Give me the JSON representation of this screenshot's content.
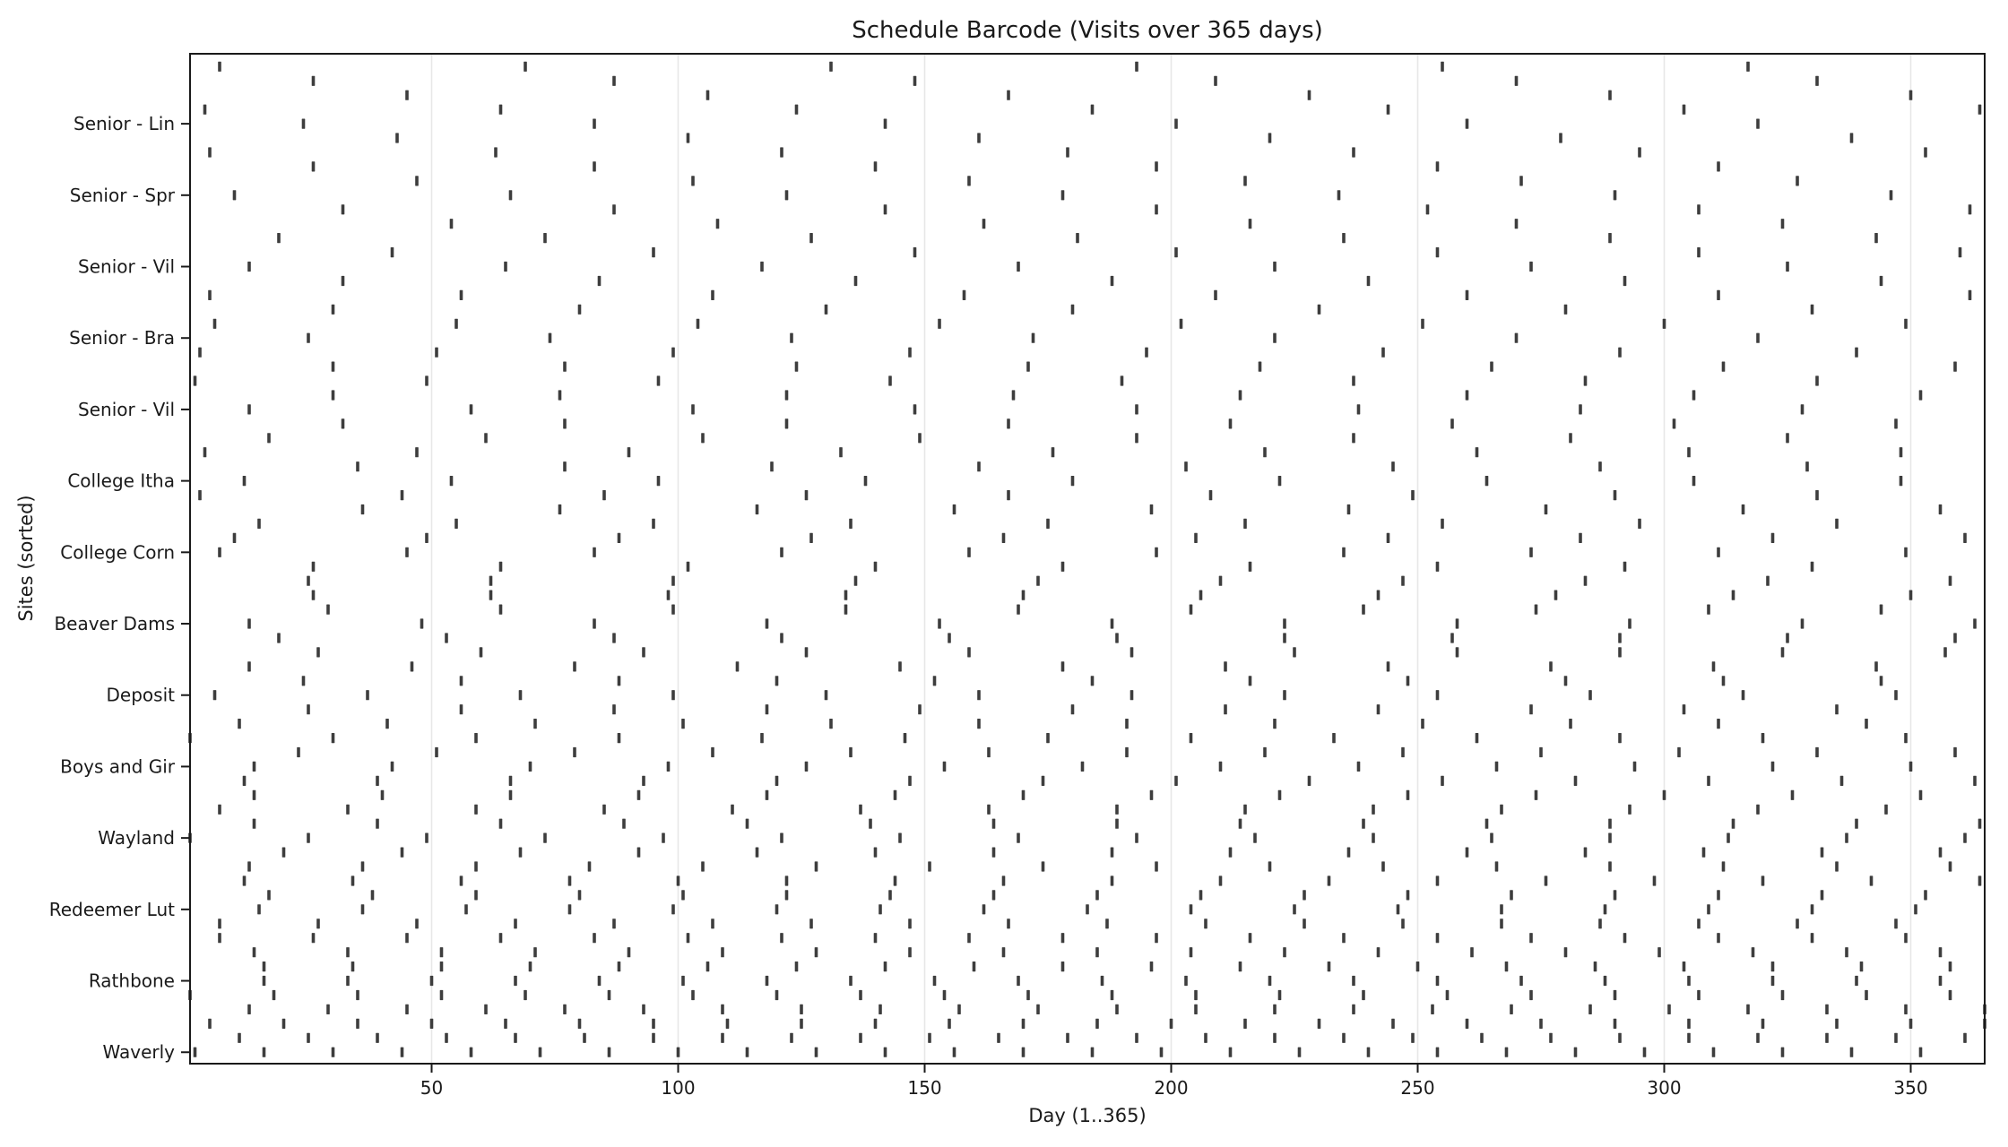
{
  "figure": {
    "title": "Schedule Barcode (Visits over 365 days)",
    "xlabel": "Day (1..365)",
    "ylabel": "Sites (sorted)"
  },
  "chart_data": {
    "type": "scatter",
    "marker": "|",
    "title": "Schedule Barcode (Visits over 365 days)",
    "xlabel": "Day (1..365)",
    "ylabel": "Sites (sorted)",
    "xlim": [
      1,
      365
    ],
    "x_ticks": [
      50,
      100,
      150,
      200,
      250,
      300,
      350
    ],
    "grid": "vertical gridlines at x ticks only",
    "legend": "none",
    "num_sites": 70,
    "mark_color": "#3d3d3d",
    "gridline_color": "#e7e7e7",
    "spine_color": "#1a1a1a",
    "y_tick_rows": [
      4,
      9,
      14,
      19,
      24,
      29,
      34,
      39,
      44,
      49,
      54,
      59,
      64,
      69
    ],
    "y_tick_labels": [
      "Senior - Lin",
      "Senior - Spr",
      "Senior - Vil",
      "Senior - Bra",
      "Senior - Vil",
      "College Itha",
      "College Corn",
      "Beaver Dams",
      "Deposit",
      "Boys and Gir",
      "Wayland",
      "Redeemer Lut",
      "Rathbone",
      "Waverly"
    ],
    "sites": [
      {
        "row": 0,
        "visit_days": [
          7,
          69,
          131,
          193,
          255,
          317
        ]
      },
      {
        "row": 1,
        "visit_days": [
          26,
          87,
          148,
          209,
          270,
          331
        ]
      },
      {
        "row": 2,
        "visit_days": [
          45,
          106,
          167,
          228,
          289,
          350
        ]
      },
      {
        "row": 3,
        "visit_days": [
          4,
          64,
          124,
          184,
          244,
          304,
          364
        ]
      },
      {
        "row": 4,
        "visit_days": [
          24,
          83,
          142,
          201,
          260,
          319
        ]
      },
      {
        "row": 5,
        "visit_days": [
          43,
          102,
          161,
          220,
          279,
          338
        ]
      },
      {
        "row": 6,
        "visit_days": [
          5,
          63,
          121,
          179,
          237,
          295,
          353
        ]
      },
      {
        "row": 7,
        "visit_days": [
          26,
          83,
          140,
          197,
          254,
          311
        ]
      },
      {
        "row": 8,
        "visit_days": [
          47,
          103,
          159,
          215,
          271,
          327
        ]
      },
      {
        "row": 9,
        "visit_days": [
          10,
          66,
          122,
          178,
          234,
          290,
          346
        ]
      },
      {
        "row": 10,
        "visit_days": [
          32,
          87,
          142,
          197,
          252,
          307,
          362
        ]
      },
      {
        "row": 11,
        "visit_days": [
          54,
          108,
          162,
          216,
          270,
          324
        ]
      },
      {
        "row": 12,
        "visit_days": [
          19,
          73,
          127,
          181,
          235,
          289,
          343
        ]
      },
      {
        "row": 13,
        "visit_days": [
          42,
          95,
          148,
          201,
          254,
          307,
          360
        ]
      },
      {
        "row": 14,
        "visit_days": [
          13,
          65,
          117,
          169,
          221,
          273,
          325
        ]
      },
      {
        "row": 15,
        "visit_days": [
          32,
          84,
          136,
          188,
          240,
          292,
          344
        ]
      },
      {
        "row": 16,
        "visit_days": [
          5,
          56,
          107,
          158,
          209,
          260,
          311,
          362
        ]
      },
      {
        "row": 17,
        "visit_days": [
          30,
          80,
          130,
          180,
          230,
          280,
          330
        ]
      },
      {
        "row": 18,
        "visit_days": [
          6,
          55,
          104,
          153,
          202,
          251,
          300,
          349
        ]
      },
      {
        "row": 19,
        "visit_days": [
          25,
          74,
          123,
          172,
          221,
          270,
          319
        ]
      },
      {
        "row": 20,
        "visit_days": [
          3,
          51,
          99,
          147,
          195,
          243,
          291,
          339
        ]
      },
      {
        "row": 21,
        "visit_days": [
          30,
          77,
          124,
          171,
          218,
          265,
          312,
          359
        ]
      },
      {
        "row": 22,
        "visit_days": [
          2,
          49,
          96,
          143,
          190,
          237,
          284,
          331
        ]
      },
      {
        "row": 23,
        "visit_days": [
          30,
          76,
          122,
          168,
          214,
          260,
          306,
          352
        ]
      },
      {
        "row": 24,
        "visit_days": [
          13,
          58,
          103,
          148,
          193,
          238,
          283,
          328
        ]
      },
      {
        "row": 25,
        "visit_days": [
          32,
          77,
          122,
          167,
          212,
          257,
          302,
          347
        ]
      },
      {
        "row": 26,
        "visit_days": [
          17,
          61,
          105,
          149,
          193,
          237,
          281,
          325
        ]
      },
      {
        "row": 27,
        "visit_days": [
          4,
          47,
          90,
          133,
          176,
          219,
          262,
          305,
          348
        ]
      },
      {
        "row": 28,
        "visit_days": [
          35,
          77,
          119,
          161,
          203,
          245,
          287,
          329
        ]
      },
      {
        "row": 29,
        "visit_days": [
          12,
          54,
          96,
          138,
          180,
          222,
          264,
          306,
          348
        ]
      },
      {
        "row": 30,
        "visit_days": [
          3,
          44,
          85,
          126,
          167,
          208,
          249,
          290,
          331
        ]
      },
      {
        "row": 31,
        "visit_days": [
          36,
          76,
          116,
          156,
          196,
          236,
          276,
          316,
          356
        ]
      },
      {
        "row": 32,
        "visit_days": [
          15,
          55,
          95,
          135,
          175,
          215,
          255,
          295,
          335
        ]
      },
      {
        "row": 33,
        "visit_days": [
          10,
          49,
          88,
          127,
          166,
          205,
          244,
          283,
          322,
          361
        ]
      },
      {
        "row": 34,
        "visit_days": [
          7,
          45,
          83,
          121,
          159,
          197,
          235,
          273,
          311,
          349
        ]
      },
      {
        "row": 35,
        "visit_days": [
          26,
          64,
          102,
          140,
          178,
          216,
          254,
          292,
          330
        ]
      },
      {
        "row": 36,
        "visit_days": [
          25,
          62,
          99,
          136,
          173,
          210,
          247,
          284,
          321,
          358
        ]
      },
      {
        "row": 37,
        "visit_days": [
          26,
          62,
          98,
          134,
          170,
          206,
          242,
          278,
          314,
          350
        ]
      },
      {
        "row": 38,
        "visit_days": [
          29,
          64,
          99,
          134,
          169,
          204,
          239,
          274,
          309,
          344
        ]
      },
      {
        "row": 39,
        "visit_days": [
          13,
          48,
          83,
          118,
          153,
          188,
          223,
          258,
          293,
          328,
          363
        ]
      },
      {
        "row": 40,
        "visit_days": [
          19,
          53,
          87,
          121,
          155,
          189,
          223,
          257,
          291,
          325,
          359
        ]
      },
      {
        "row": 41,
        "visit_days": [
          27,
          60,
          93,
          126,
          159,
          192,
          225,
          258,
          291,
          324,
          357
        ]
      },
      {
        "row": 42,
        "visit_days": [
          13,
          46,
          79,
          112,
          145,
          178,
          211,
          244,
          277,
          310,
          343
        ]
      },
      {
        "row": 43,
        "visit_days": [
          24,
          56,
          88,
          120,
          152,
          184,
          216,
          248,
          280,
          312,
          344
        ]
      },
      {
        "row": 44,
        "visit_days": [
          6,
          37,
          68,
          99,
          130,
          161,
          192,
          223,
          254,
          285,
          316,
          347
        ]
      },
      {
        "row": 45,
        "visit_days": [
          25,
          56,
          87,
          118,
          149,
          180,
          211,
          242,
          273,
          304,
          335
        ]
      },
      {
        "row": 46,
        "visit_days": [
          11,
          41,
          71,
          101,
          131,
          161,
          191,
          221,
          251,
          281,
          311,
          341
        ]
      },
      {
        "row": 47,
        "visit_days": [
          1,
          30,
          59,
          88,
          117,
          146,
          175,
          204,
          233,
          262,
          291,
          320,
          349
        ]
      },
      {
        "row": 48,
        "visit_days": [
          23,
          51,
          79,
          107,
          135,
          163,
          191,
          219,
          247,
          275,
          303,
          331,
          359
        ]
      },
      {
        "row": 49,
        "visit_days": [
          14,
          42,
          70,
          98,
          126,
          154,
          182,
          210,
          238,
          266,
          294,
          322,
          350
        ]
      },
      {
        "row": 50,
        "visit_days": [
          12,
          39,
          66,
          93,
          120,
          147,
          174,
          201,
          228,
          255,
          282,
          309,
          336,
          363
        ]
      },
      {
        "row": 51,
        "visit_days": [
          14,
          40,
          66,
          92,
          118,
          144,
          170,
          196,
          222,
          248,
          274,
          300,
          326,
          352
        ]
      },
      {
        "row": 52,
        "visit_days": [
          7,
          33,
          59,
          85,
          111,
          137,
          163,
          189,
          215,
          241,
          267,
          293,
          319,
          345
        ]
      },
      {
        "row": 53,
        "visit_days": [
          14,
          39,
          64,
          89,
          114,
          139,
          164,
          189,
          214,
          239,
          264,
          289,
          314,
          339,
          364
        ]
      },
      {
        "row": 54,
        "visit_days": [
          1,
          25,
          49,
          73,
          97,
          121,
          145,
          169,
          193,
          217,
          241,
          265,
          289,
          313,
          337,
          361
        ]
      },
      {
        "row": 55,
        "visit_days": [
          20,
          44,
          68,
          92,
          116,
          140,
          164,
          188,
          212,
          236,
          260,
          284,
          308,
          332,
          356
        ]
      },
      {
        "row": 56,
        "visit_days": [
          13,
          36,
          59,
          82,
          105,
          128,
          151,
          174,
          197,
          220,
          243,
          266,
          289,
          312,
          335,
          358
        ]
      },
      {
        "row": 57,
        "visit_days": [
          12,
          34,
          56,
          78,
          100,
          122,
          144,
          166,
          188,
          210,
          232,
          254,
          276,
          298,
          320,
          342,
          364
        ]
      },
      {
        "row": 58,
        "visit_days": [
          17,
          38,
          59,
          80,
          101,
          122,
          143,
          164,
          185,
          206,
          227,
          248,
          269,
          290,
          311,
          332,
          353
        ]
      },
      {
        "row": 59,
        "visit_days": [
          15,
          36,
          57,
          78,
          99,
          120,
          141,
          162,
          183,
          204,
          225,
          246,
          267,
          288,
          309,
          330,
          351
        ]
      },
      {
        "row": 60,
        "visit_days": [
          7,
          27,
          47,
          67,
          87,
          107,
          127,
          147,
          167,
          187,
          207,
          227,
          247,
          267,
          287,
          307,
          327,
          347
        ]
      },
      {
        "row": 61,
        "visit_days": [
          7,
          26,
          45,
          64,
          83,
          102,
          121,
          140,
          159,
          178,
          197,
          216,
          235,
          254,
          273,
          292,
          311,
          330,
          349
        ]
      },
      {
        "row": 62,
        "visit_days": [
          14,
          33,
          52,
          71,
          90,
          109,
          128,
          147,
          166,
          185,
          204,
          223,
          242,
          261,
          280,
          299,
          318,
          337,
          356
        ]
      },
      {
        "row": 63,
        "visit_days": [
          16,
          34,
          52,
          70,
          88,
          106,
          124,
          142,
          160,
          178,
          196,
          214,
          232,
          250,
          268,
          286,
          304,
          322,
          340,
          358
        ]
      },
      {
        "row": 64,
        "visit_days": [
          16,
          33,
          50,
          67,
          84,
          101,
          118,
          135,
          152,
          169,
          186,
          203,
          220,
          237,
          254,
          271,
          288,
          305,
          322,
          339,
          356
        ]
      },
      {
        "row": 65,
        "visit_days": [
          1,
          18,
          35,
          52,
          69,
          86,
          103,
          120,
          137,
          154,
          171,
          188,
          205,
          222,
          239,
          256,
          273,
          290,
          307,
          324,
          341,
          358
        ]
      },
      {
        "row": 66,
        "visit_days": [
          13,
          29,
          45,
          61,
          77,
          93,
          109,
          125,
          141,
          157,
          173,
          189,
          205,
          221,
          237,
          253,
          269,
          285,
          301,
          317,
          333,
          349,
          365
        ]
      },
      {
        "row": 67,
        "visit_days": [
          5,
          20,
          35,
          50,
          65,
          80,
          95,
          110,
          125,
          140,
          155,
          170,
          185,
          200,
          215,
          230,
          245,
          260,
          275,
          290,
          305,
          320,
          335,
          350,
          365
        ]
      },
      {
        "row": 68,
        "visit_days": [
          11,
          25,
          39,
          53,
          67,
          81,
          95,
          109,
          123,
          137,
          151,
          165,
          179,
          193,
          207,
          221,
          235,
          249,
          263,
          277,
          291,
          305,
          319,
          333,
          347,
          361
        ]
      },
      {
        "row": 69,
        "visit_days": [
          2,
          16,
          30,
          44,
          58,
          72,
          86,
          100,
          114,
          128,
          142,
          156,
          170,
          184,
          198,
          212,
          226,
          240,
          254,
          268,
          282,
          296,
          310,
          324,
          338,
          352
        ]
      }
    ]
  }
}
